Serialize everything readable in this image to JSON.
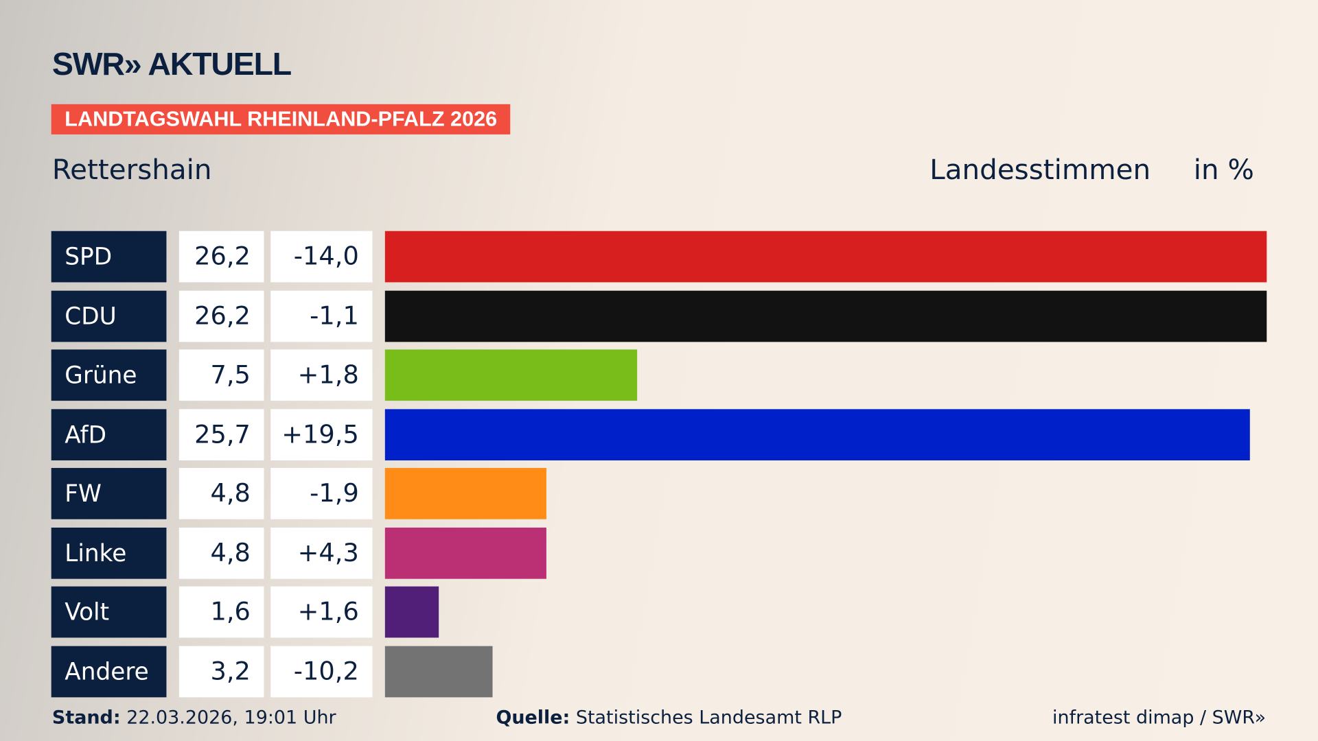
{
  "header": {
    "logo": "SWR» AKTUELL",
    "tag": "LANDTAGSWAHL RHEINLAND-PFALZ 2026",
    "region": "Rettershain",
    "metric": "Landesstimmen",
    "unit": "in %"
  },
  "chart_data": {
    "type": "bar",
    "orientation": "horizontal",
    "categories": [
      "SPD",
      "CDU",
      "Grüne",
      "AfD",
      "FW",
      "Linke",
      "Volt",
      "Andere"
    ],
    "values": [
      26.2,
      26.2,
      7.5,
      25.7,
      4.8,
      4.8,
      1.6,
      3.2
    ],
    "values_label": [
      "26,2",
      "26,2",
      "7,5",
      "25,7",
      "4,8",
      "4,8",
      "1,6",
      "3,2"
    ],
    "diff_label": [
      "-14,0",
      "-1,1",
      "+1,8",
      "+19,5",
      "-1,9",
      "+4,3",
      "+1,6",
      "-10,2"
    ],
    "colors": [
      "#d81f1f",
      "#121212",
      "#79bd1a",
      "#0021c9",
      "#ff8c17",
      "#bb2f75",
      "#521f78",
      "#737373"
    ],
    "xlim": [
      0,
      26.2
    ]
  },
  "footer": {
    "stand_label": "Stand:",
    "stand_value": "22.03.2026, 19:01 Uhr",
    "source_label": "Quelle:",
    "source_value": "Statistisches Landesamt RLP",
    "credit": "infratest dimap / SWR»"
  }
}
